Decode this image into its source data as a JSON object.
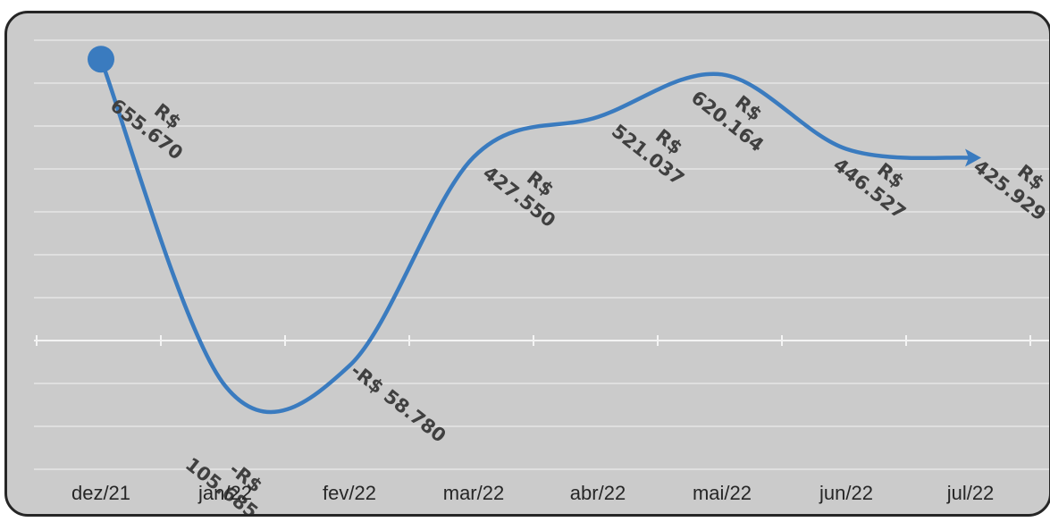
{
  "chart_data": {
    "type": "line",
    "title": "",
    "xlabel": "",
    "ylabel": "",
    "categories": [
      "dez/21",
      "jan/22",
      "fev/22",
      "mar/22",
      "abr/22",
      "mai/22",
      "jun/22",
      "jul/22"
    ],
    "values": [
      655670,
      -105685,
      -58780,
      427550,
      521037,
      620164,
      446527,
      425929
    ],
    "data_labels": [
      [
        "R$",
        "655.670"
      ],
      [
        "-R$",
        "105.685"
      ],
      [
        "-R$ 58.780"
      ],
      [
        "R$",
        "427.550"
      ],
      [
        "R$",
        "521.037"
      ],
      [
        "R$",
        "620.164"
      ],
      [
        "R$",
        "446.527"
      ],
      [
        "R$",
        "425.929"
      ]
    ],
    "ylim": [
      -300000,
      700000
    ],
    "grid": true,
    "smooth": true,
    "legend": "none",
    "colors": {
      "series": "#3a7bbf",
      "background": "#cbcbcb",
      "frame": "#262626",
      "gridline": "#e6e6e6",
      "tick_text": "#262626",
      "label_text": "#404040"
    }
  }
}
